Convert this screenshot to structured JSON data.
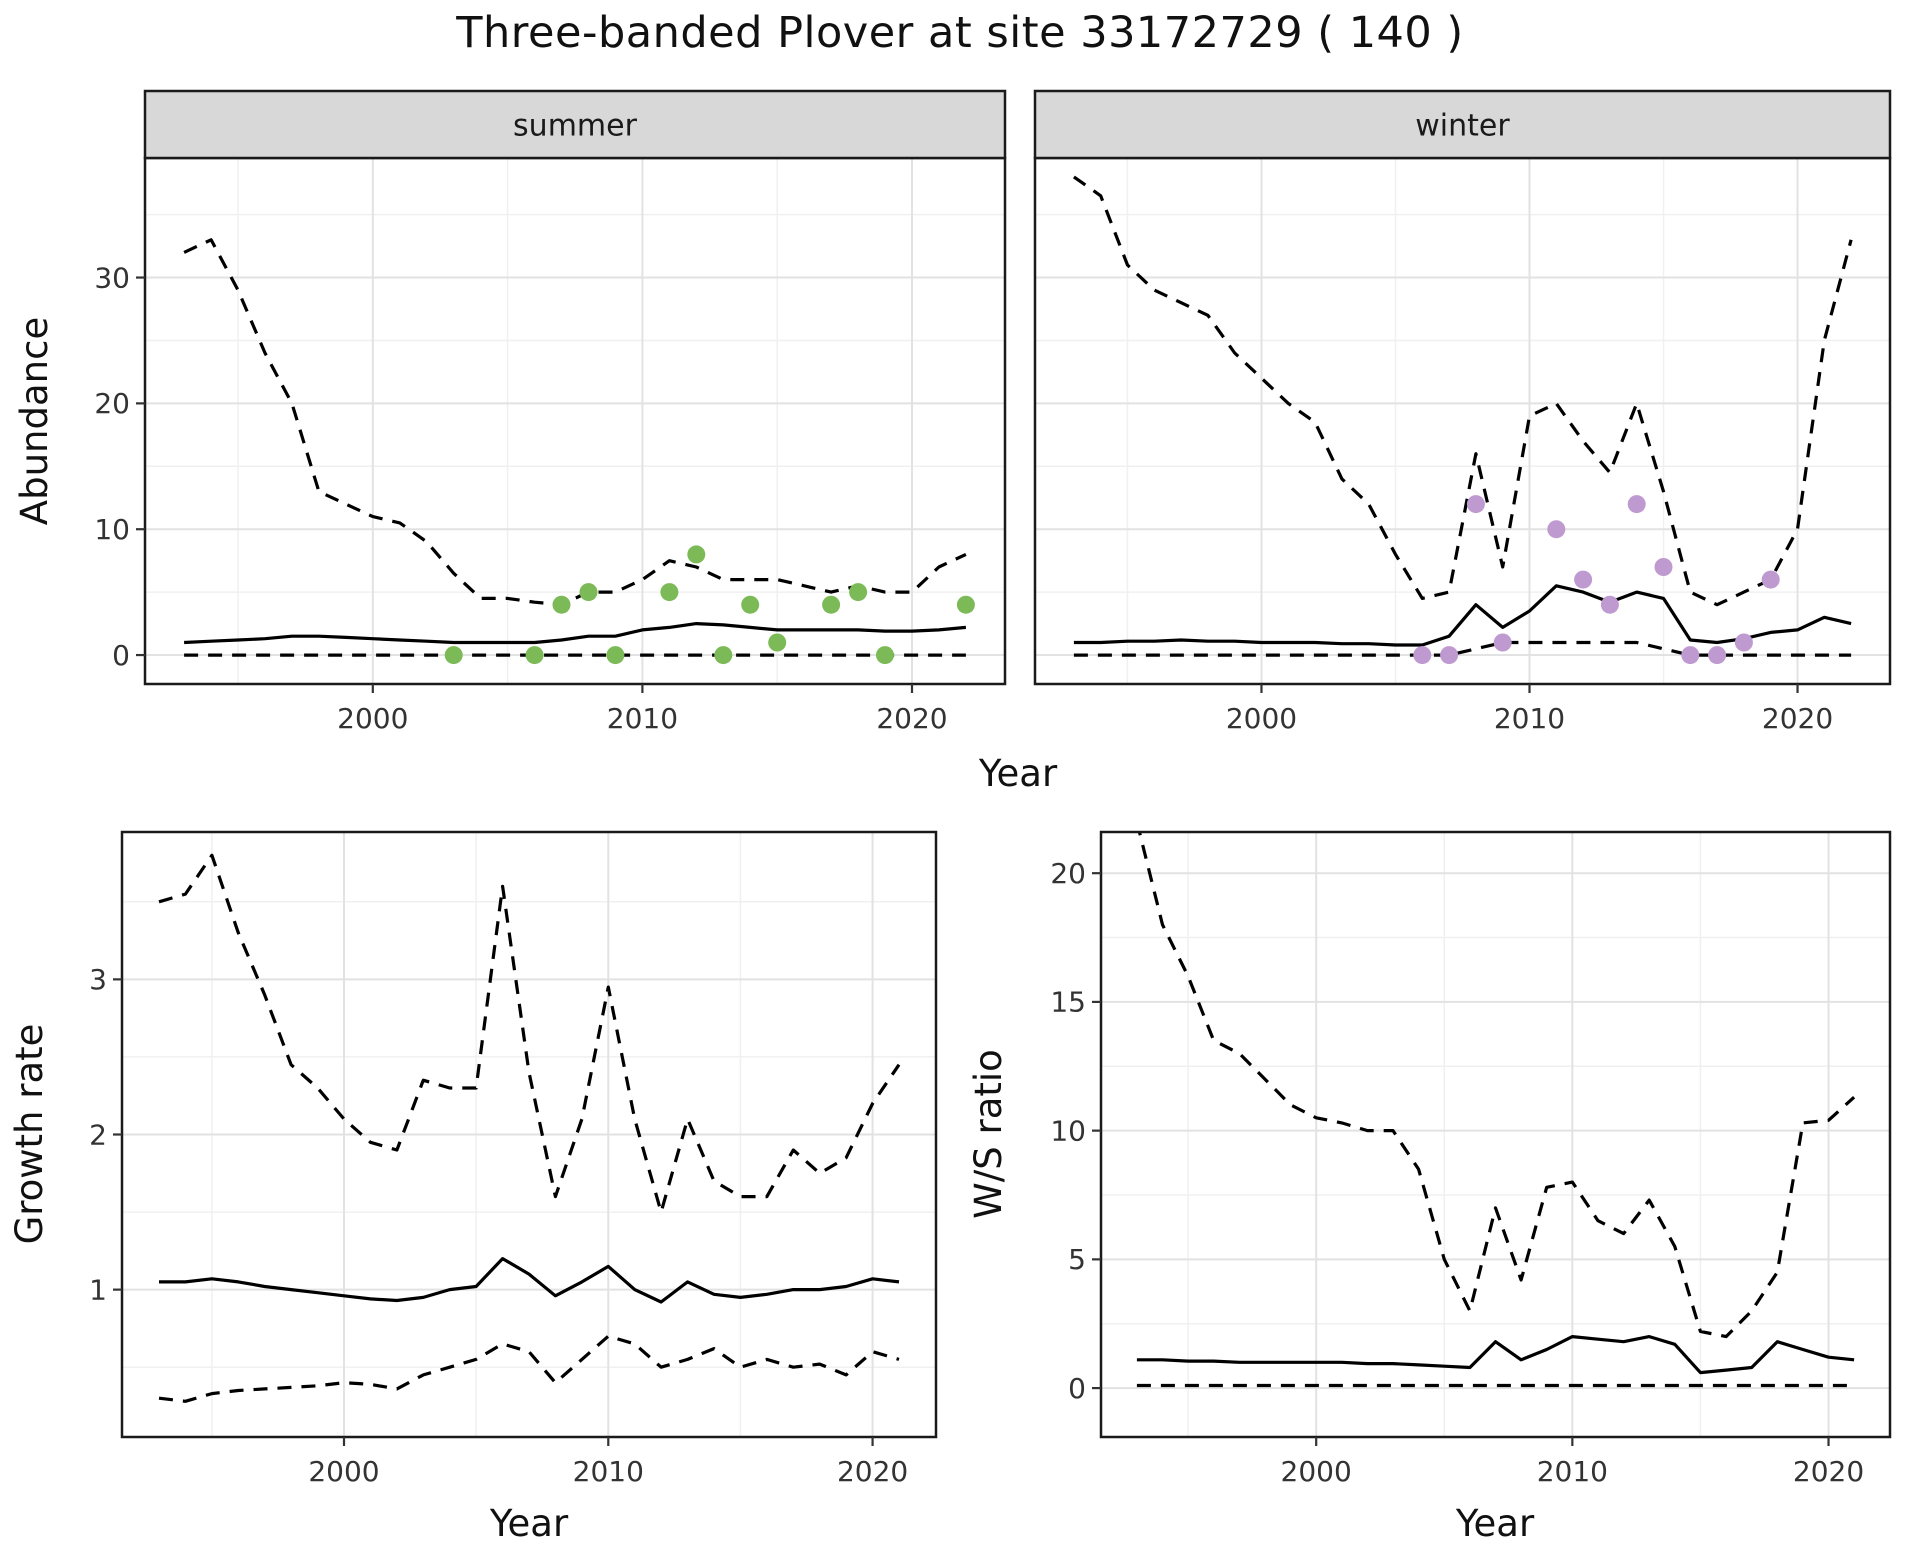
{
  "title": "Three-banded Plover at site 33172729 ( 140 )",
  "colors": {
    "line": "#000000",
    "summer_points": "#7cba58",
    "winter_points": "#bf9ad0",
    "grid_major": "#e2e2e2",
    "grid_minor": "#f0f0f0",
    "strip_bg": "#d8d8d8",
    "panel_border": "#1a1a1a",
    "tick_text": "#333333",
    "background": "#ffffff"
  },
  "chart_data": [
    {
      "id": "summer-abundance",
      "type": "line",
      "facet_label": "summer",
      "xlabel": "Year",
      "ylabel": "Abundance",
      "xlim": [
        1991.55,
        2023.45
      ],
      "ylim": [
        -2.3,
        39.5
      ],
      "xticks": [
        2000,
        2010,
        2020
      ],
      "yticks": [
        0,
        10,
        20,
        30
      ],
      "grid": true,
      "legend": "none",
      "x": [
        1993,
        1994,
        1995,
        1996,
        1997,
        1998,
        1999,
        2000,
        2001,
        2002,
        2003,
        2004,
        2005,
        2006,
        2007,
        2008,
        2009,
        2010,
        2011,
        2012,
        2013,
        2014,
        2015,
        2016,
        2017,
        2018,
        2019,
        2020,
        2021,
        2022
      ],
      "series": [
        {
          "name": "upper-credible-interval",
          "style": "dashed",
          "values": [
            32,
            33,
            29,
            24,
            20,
            13,
            12,
            11,
            10.5,
            9,
            6.5,
            4.5,
            4.5,
            4.2,
            4,
            5,
            5,
            6,
            7.5,
            7,
            6,
            6,
            6,
            5.5,
            5,
            5.5,
            5,
            5,
            7,
            8
          ]
        },
        {
          "name": "median-estimate",
          "style": "solid",
          "values": [
            1,
            1.1,
            1.2,
            1.3,
            1.5,
            1.5,
            1.4,
            1.3,
            1.2,
            1.1,
            1,
            1,
            1,
            1,
            1.2,
            1.5,
            1.5,
            2,
            2.2,
            2.5,
            2.4,
            2.2,
            2,
            2,
            2,
            2,
            1.9,
            1.9,
            2,
            2.2
          ]
        },
        {
          "name": "lower-credible-interval",
          "style": "dashed",
          "values": [
            0,
            0,
            0,
            0,
            0,
            0,
            0,
            0,
            0,
            0,
            0,
            0,
            0,
            0,
            0,
            0,
            0,
            0,
            0,
            0,
            0,
            0,
            0,
            0,
            0,
            0,
            0,
            0,
            0,
            0
          ]
        }
      ],
      "points": {
        "name": "observed-summer-counts",
        "color": "#7cba58",
        "x": [
          2003,
          2006,
          2007,
          2008,
          2009,
          2011,
          2012,
          2013,
          2014,
          2015,
          2017,
          2018,
          2019,
          2022
        ],
        "y": [
          0,
          0,
          4,
          5,
          0,
          5,
          8,
          0,
          4,
          1,
          4,
          5,
          0,
          4
        ]
      }
    },
    {
      "id": "winter-abundance",
      "type": "line",
      "facet_label": "winter",
      "xlabel": "Year",
      "ylabel": "Abundance",
      "xlim": [
        1991.55,
        2023.45
      ],
      "ylim": [
        -2.3,
        39.5
      ],
      "xticks": [
        2000,
        2010,
        2020
      ],
      "yticks": [
        0,
        10,
        20,
        30
      ],
      "grid": true,
      "legend": "none",
      "x": [
        1993,
        1994,
        1995,
        1996,
        1997,
        1998,
        1999,
        2000,
        2001,
        2002,
        2003,
        2004,
        2005,
        2006,
        2007,
        2008,
        2009,
        2010,
        2011,
        2012,
        2013,
        2014,
        2015,
        2016,
        2017,
        2018,
        2019,
        2020,
        2021,
        2022
      ],
      "series": [
        {
          "name": "upper-credible-interval",
          "style": "dashed",
          "values": [
            38,
            36.5,
            31,
            29,
            28,
            27,
            24,
            22,
            20,
            18.5,
            14,
            12,
            8,
            4.5,
            5,
            16,
            7,
            19,
            20,
            17,
            14.5,
            20,
            13,
            5,
            4,
            5,
            6,
            10,
            25,
            33
          ]
        },
        {
          "name": "median-estimate",
          "style": "solid",
          "values": [
            1,
            1,
            1.1,
            1.1,
            1.2,
            1.1,
            1.1,
            1,
            1,
            1,
            0.9,
            0.9,
            0.8,
            0.8,
            1.5,
            4,
            2.2,
            3.5,
            5.5,
            5,
            4.2,
            5,
            4.5,
            1.2,
            1,
            1.3,
            1.8,
            2,
            3,
            2.5
          ]
        },
        {
          "name": "lower-credible-interval",
          "style": "dashed",
          "values": [
            0,
            0,
            0,
            0,
            0,
            0,
            0,
            0,
            0,
            0,
            0,
            0,
            0,
            0,
            0,
            0.5,
            1,
            1,
            1,
            1,
            1,
            1,
            0.5,
            0,
            0,
            0,
            0,
            0,
            0,
            0
          ]
        }
      ],
      "points": {
        "name": "observed-winter-counts",
        "color": "#bf9ad0",
        "x": [
          2006,
          2007,
          2008,
          2009,
          2011,
          2012,
          2013,
          2014,
          2015,
          2016,
          2017,
          2018,
          2019
        ],
        "y": [
          0,
          0,
          12,
          1,
          10,
          6,
          4,
          12,
          7,
          0,
          0,
          1,
          6
        ]
      }
    },
    {
      "id": "growth-rate",
      "type": "line",
      "facet_label": null,
      "xlabel": "Year",
      "ylabel": "Growth rate",
      "xlim": [
        1991.6,
        2022.4
      ],
      "ylim": [
        0.05,
        3.95
      ],
      "xticks": [
        2000,
        2010,
        2020
      ],
      "yticks": [
        1,
        2,
        3
      ],
      "grid": true,
      "legend": "none",
      "x": [
        1993,
        1994,
        1995,
        1996,
        1997,
        1998,
        1999,
        2000,
        2001,
        2002,
        2003,
        2004,
        2005,
        2006,
        2007,
        2008,
        2009,
        2010,
        2011,
        2012,
        2013,
        2014,
        2015,
        2016,
        2017,
        2018,
        2019,
        2020,
        2021
      ],
      "series": [
        {
          "name": "upper-credible-interval",
          "style": "dashed",
          "values": [
            3.5,
            3.55,
            3.8,
            3.3,
            2.9,
            2.45,
            2.3,
            2.1,
            1.95,
            1.9,
            2.35,
            2.3,
            2.3,
            3.6,
            2.4,
            1.6,
            2.1,
            2.95,
            2.1,
            1.5,
            2.1,
            1.7,
            1.6,
            1.6,
            1.9,
            1.75,
            1.85,
            2.2,
            2.45
          ]
        },
        {
          "name": "median-estimate",
          "style": "solid",
          "values": [
            1.05,
            1.05,
            1.07,
            1.05,
            1.02,
            1,
            0.98,
            0.96,
            0.94,
            0.93,
            0.95,
            1,
            1.02,
            1.2,
            1.1,
            0.96,
            1.05,
            1.15,
            1,
            0.92,
            1.05,
            0.97,
            0.95,
            0.97,
            1,
            1,
            1.02,
            1.07,
            1.05
          ]
        },
        {
          "name": "lower-credible-interval",
          "style": "dashed",
          "values": [
            0.3,
            0.28,
            0.33,
            0.35,
            0.36,
            0.37,
            0.38,
            0.4,
            0.39,
            0.36,
            0.45,
            0.5,
            0.55,
            0.65,
            0.6,
            0.4,
            0.55,
            0.7,
            0.65,
            0.5,
            0.55,
            0.62,
            0.5,
            0.55,
            0.5,
            0.52,
            0.45,
            0.6,
            0.55
          ]
        }
      ]
    },
    {
      "id": "ws-ratio",
      "type": "line",
      "facet_label": null,
      "xlabel": "Year",
      "ylabel": "W/S ratio",
      "xlim": [
        1991.6,
        2022.4
      ],
      "ylim": [
        -1.9,
        21.6
      ],
      "xticks": [
        2000,
        2010,
        2020
      ],
      "yticks": [
        0,
        5,
        10,
        15,
        20
      ],
      "grid": true,
      "legend": "none",
      "x": [
        1993,
        1994,
        1995,
        1996,
        1997,
        1998,
        1999,
        2000,
        2001,
        2002,
        2003,
        2004,
        2005,
        2006,
        2007,
        2008,
        2009,
        2010,
        2011,
        2012,
        2013,
        2014,
        2015,
        2016,
        2017,
        2018,
        2019,
        2020,
        2021
      ],
      "series": [
        {
          "name": "upper-credible-interval",
          "style": "dashed",
          "values": [
            22,
            18,
            16,
            13.5,
            13,
            12,
            11,
            10.5,
            10.3,
            10,
            10,
            8.5,
            5,
            3,
            7,
            4.2,
            7.8,
            8,
            6.5,
            6,
            7.3,
            5.5,
            2.2,
            2,
            3,
            4.5,
            10.3,
            10.4,
            11.3
          ]
        },
        {
          "name": "median-estimate",
          "style": "solid",
          "values": [
            1.1,
            1.1,
            1.05,
            1.05,
            1,
            1,
            1,
            1,
            1,
            0.95,
            0.95,
            0.9,
            0.85,
            0.8,
            1.8,
            1.1,
            1.5,
            2,
            1.9,
            1.8,
            2,
            1.7,
            0.6,
            0.7,
            0.8,
            1.8,
            1.5,
            1.2,
            1.1
          ]
        },
        {
          "name": "lower-credible-interval",
          "style": "dashed",
          "values": [
            0.1,
            0.1,
            0.1,
            0.1,
            0.1,
            0.1,
            0.1,
            0.1,
            0.1,
            0.1,
            0.1,
            0.1,
            0.1,
            0.1,
            0.1,
            0.1,
            0.1,
            0.1,
            0.1,
            0.1,
            0.1,
            0.1,
            0.1,
            0.1,
            0.1,
            0.1,
            0.1,
            0.1,
            0.1
          ]
        }
      ]
    }
  ]
}
